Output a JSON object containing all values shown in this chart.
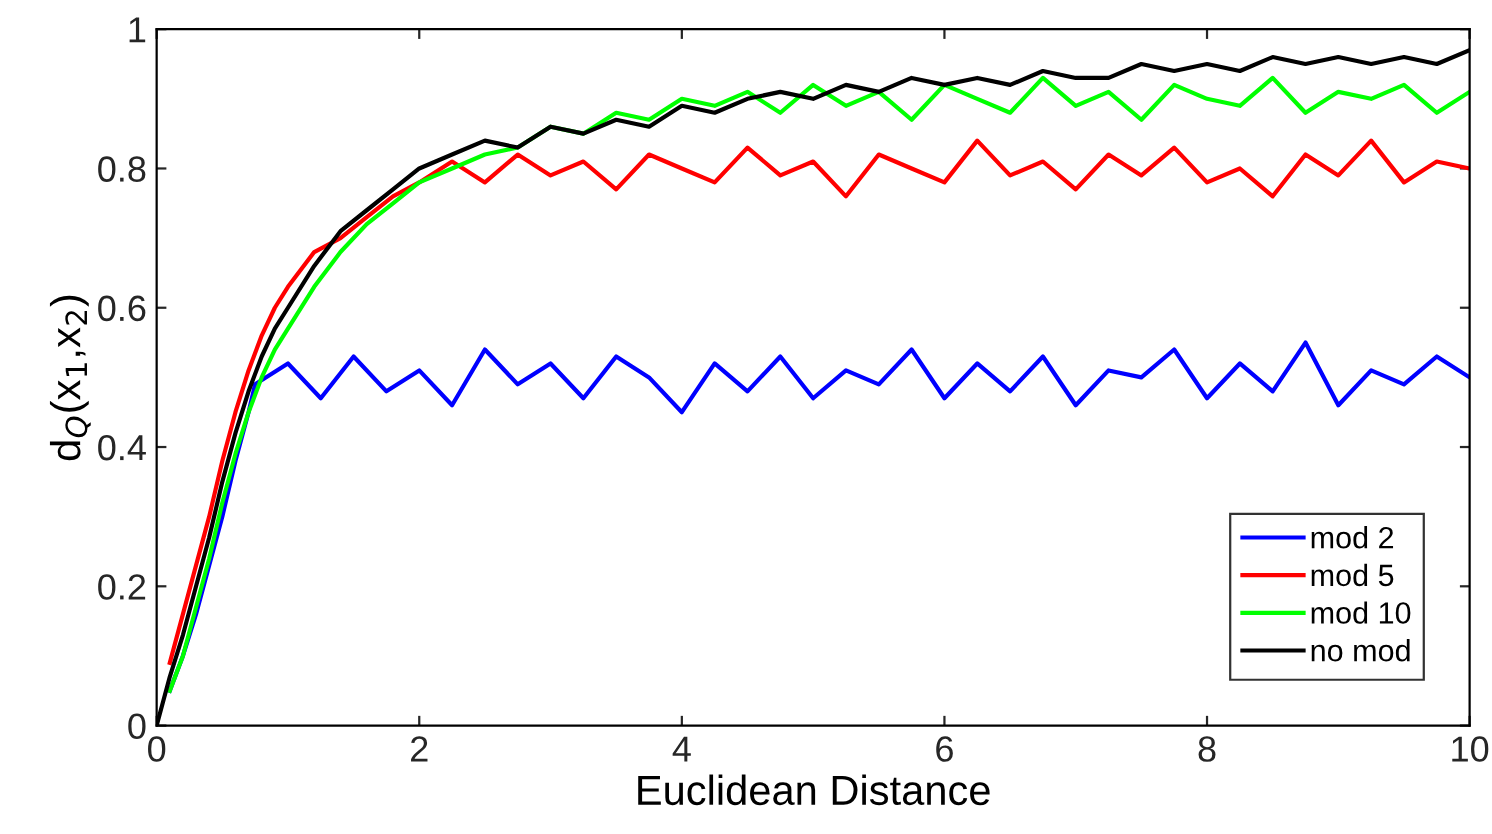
{
  "chart_data": {
    "type": "line",
    "xlabel": "Euclidean Distance",
    "ylabel": "d$_{Q}$(x$_{1}$,x$_{2}$)",
    "xlim": [
      0,
      10
    ],
    "ylim": [
      0,
      1
    ],
    "xticks": [
      0,
      2,
      4,
      6,
      8,
      10
    ],
    "yticks": [
      0,
      0.2,
      0.4,
      0.6,
      0.8,
      1
    ],
    "grid": false,
    "legend": "bottom right",
    "line_style": "solid",
    "marker": "none",
    "series": [
      {
        "name": "mod 2",
        "color": "#0000ff",
        "x": [
          0.1,
          0.2,
          0.3,
          0.4,
          0.5,
          0.6,
          0.7,
          0.75,
          1,
          1.25,
          1.5,
          1.75,
          2,
          2.25,
          2.5,
          2.75,
          3,
          3.25,
          3.5,
          3.75,
          4,
          4.25,
          4.5,
          4.75,
          5,
          5.25,
          5.5,
          5.75,
          6,
          6.25,
          6.5,
          6.75,
          7,
          7.25,
          7.5,
          7.75,
          8,
          8.25,
          8.5,
          8.75,
          9,
          9.25,
          9.5,
          9.75,
          10
        ],
        "values": [
          0.05,
          0.1,
          0.16,
          0.23,
          0.3,
          0.38,
          0.45,
          0.49,
          0.52,
          0.47,
          0.53,
          0.48,
          0.51,
          0.46,
          0.54,
          0.49,
          0.52,
          0.47,
          0.53,
          0.5,
          0.45,
          0.52,
          0.48,
          0.53,
          0.47,
          0.51,
          0.49,
          0.54,
          0.47,
          0.52,
          0.48,
          0.53,
          0.46,
          0.51,
          0.5,
          0.54,
          0.47,
          0.52,
          0.48,
          0.55,
          0.46,
          0.51,
          0.49,
          0.53,
          0.5
        ]
      },
      {
        "name": "mod 5",
        "color": "#ff0000",
        "x": [
          0.1,
          0.2,
          0.3,
          0.4,
          0.5,
          0.6,
          0.7,
          0.8,
          0.9,
          1.0,
          1.2,
          1.4,
          1.6,
          1.8,
          2.0,
          2.25,
          2.5,
          2.75,
          3,
          3.25,
          3.5,
          3.75,
          4,
          4.25,
          4.5,
          4.75,
          5,
          5.25,
          5.5,
          5.75,
          6,
          6.25,
          6.5,
          6.75,
          7,
          7.25,
          7.5,
          7.75,
          8,
          8.25,
          8.5,
          8.75,
          9,
          9.25,
          9.5,
          9.75,
          10
        ],
        "values": [
          0.09,
          0.16,
          0.23,
          0.3,
          0.38,
          0.45,
          0.51,
          0.56,
          0.6,
          0.63,
          0.68,
          0.7,
          0.73,
          0.76,
          0.78,
          0.81,
          0.78,
          0.82,
          0.79,
          0.81,
          0.77,
          0.82,
          0.8,
          0.78,
          0.83,
          0.79,
          0.81,
          0.76,
          0.82,
          0.8,
          0.78,
          0.84,
          0.79,
          0.81,
          0.77,
          0.82,
          0.79,
          0.83,
          0.78,
          0.8,
          0.76,
          0.82,
          0.79,
          0.84,
          0.78,
          0.81,
          0.8
        ]
      },
      {
        "name": "mod 10",
        "color": "#00ff00",
        "x": [
          0.1,
          0.2,
          0.3,
          0.4,
          0.5,
          0.6,
          0.7,
          0.8,
          0.9,
          1.0,
          1.2,
          1.4,
          1.6,
          1.8,
          2.0,
          2.25,
          2.5,
          2.75,
          3,
          3.25,
          3.5,
          3.75,
          4,
          4.25,
          4.5,
          4.75,
          5,
          5.25,
          5.5,
          5.75,
          6,
          6.25,
          6.5,
          6.75,
          7,
          7.25,
          7.5,
          7.75,
          8,
          8.25,
          8.5,
          8.75,
          9,
          9.25,
          9.5,
          9.75,
          10
        ],
        "values": [
          0.05,
          0.1,
          0.17,
          0.24,
          0.32,
          0.39,
          0.45,
          0.5,
          0.54,
          0.57,
          0.63,
          0.68,
          0.72,
          0.75,
          0.78,
          0.8,
          0.82,
          0.83,
          0.86,
          0.85,
          0.88,
          0.87,
          0.9,
          0.89,
          0.91,
          0.88,
          0.92,
          0.89,
          0.91,
          0.87,
          0.92,
          0.9,
          0.88,
          0.93,
          0.89,
          0.91,
          0.87,
          0.92,
          0.9,
          0.89,
          0.93,
          0.88,
          0.91,
          0.9,
          0.92,
          0.88,
          0.91
        ]
      },
      {
        "name": "no mod",
        "color": "#000000",
        "x": [
          0,
          0.1,
          0.2,
          0.3,
          0.4,
          0.5,
          0.6,
          0.7,
          0.8,
          0.9,
          1.0,
          1.2,
          1.4,
          1.6,
          1.8,
          2.0,
          2.25,
          2.5,
          2.75,
          3,
          3.25,
          3.5,
          3.75,
          4,
          4.25,
          4.5,
          4.75,
          5,
          5.25,
          5.5,
          5.75,
          6,
          6.25,
          6.5,
          6.75,
          7,
          7.25,
          7.5,
          7.75,
          8,
          8.25,
          8.5,
          8.75,
          9,
          9.25,
          9.5,
          9.75,
          10
        ],
        "values": [
          0,
          0.07,
          0.13,
          0.2,
          0.27,
          0.35,
          0.42,
          0.48,
          0.53,
          0.57,
          0.6,
          0.66,
          0.71,
          0.74,
          0.77,
          0.8,
          0.82,
          0.84,
          0.83,
          0.86,
          0.85,
          0.87,
          0.86,
          0.89,
          0.88,
          0.9,
          0.91,
          0.9,
          0.92,
          0.91,
          0.93,
          0.92,
          0.93,
          0.92,
          0.94,
          0.93,
          0.93,
          0.95,
          0.94,
          0.95,
          0.94,
          0.96,
          0.95,
          0.96,
          0.95,
          0.96,
          0.95,
          0.97
        ]
      }
    ]
  }
}
